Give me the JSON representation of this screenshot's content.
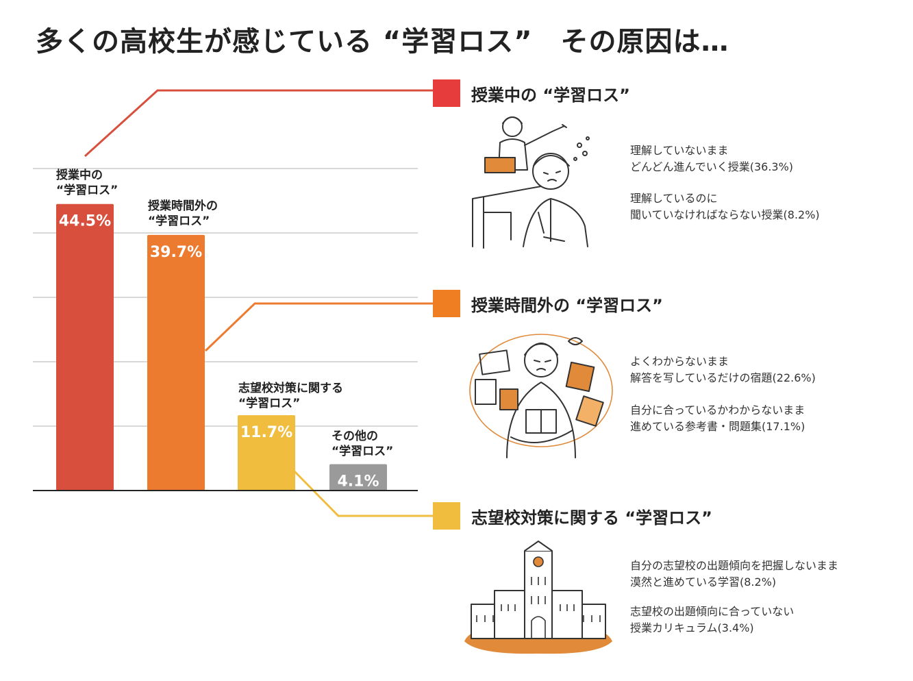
{
  "title": "多くの高校生が感じている “学習ロス”　その原因は…",
  "chart_data": {
    "type": "bar",
    "categories": [
      "授業中の “学習ロス”",
      "授業時間外の “学習ロス”",
      "志望校対策に関する “学習ロス”",
      "その他の “学習ロス”"
    ],
    "values": [
      44.5,
      39.7,
      11.7,
      4.1
    ],
    "value_labels": [
      "44.5%",
      "39.7%",
      "11.7%",
      "4.1%"
    ],
    "category_labels": [
      [
        "授業中の",
        "“学習ロス”"
      ],
      [
        "授業時間外の",
        "“学習ロス”"
      ],
      [
        "志望校対策に関する",
        "“学習ロス”"
      ],
      [
        "その他の",
        "“学習ロス”"
      ]
    ],
    "colors": [
      "#d94f3d",
      "#ec7a2f",
      "#f0bd3f",
      "#9a9a9a"
    ],
    "ylim": [
      0,
      50
    ],
    "grid": true,
    "legend": "right"
  },
  "sections": [
    {
      "heading": "授業中の “学習ロス”",
      "color": "#e63c3c",
      "illustration": "classroom-lecture",
      "reasons": [
        [
          "理解していないまま",
          "どんどん進んでいく授業(36.3%)"
        ],
        [
          "理解しているのに",
          "聞いていなければならない授業(8.2%)"
        ]
      ]
    },
    {
      "heading": "授業時間外の “学習ロス”",
      "color": "#ef7d22",
      "illustration": "confused-student-books",
      "reasons": [
        [
          "よくわからないまま",
          "解答を写しているだけの宿題(22.6%)"
        ],
        [
          "自分に合っているかわからないまま",
          "進めている参考書・問題集(17.1%)"
        ]
      ]
    },
    {
      "heading": "志望校対策に関する “学習ロス”",
      "color": "#f0bd3f",
      "illustration": "university-building",
      "reasons": [
        [
          "自分の志望校の出題傾向を把握しないまま",
          "漠然と進めている学習(8.2%)"
        ],
        [
          "志望校の出題傾向に合っていない",
          "授業カリキュラム(3.4%)"
        ]
      ]
    }
  ]
}
